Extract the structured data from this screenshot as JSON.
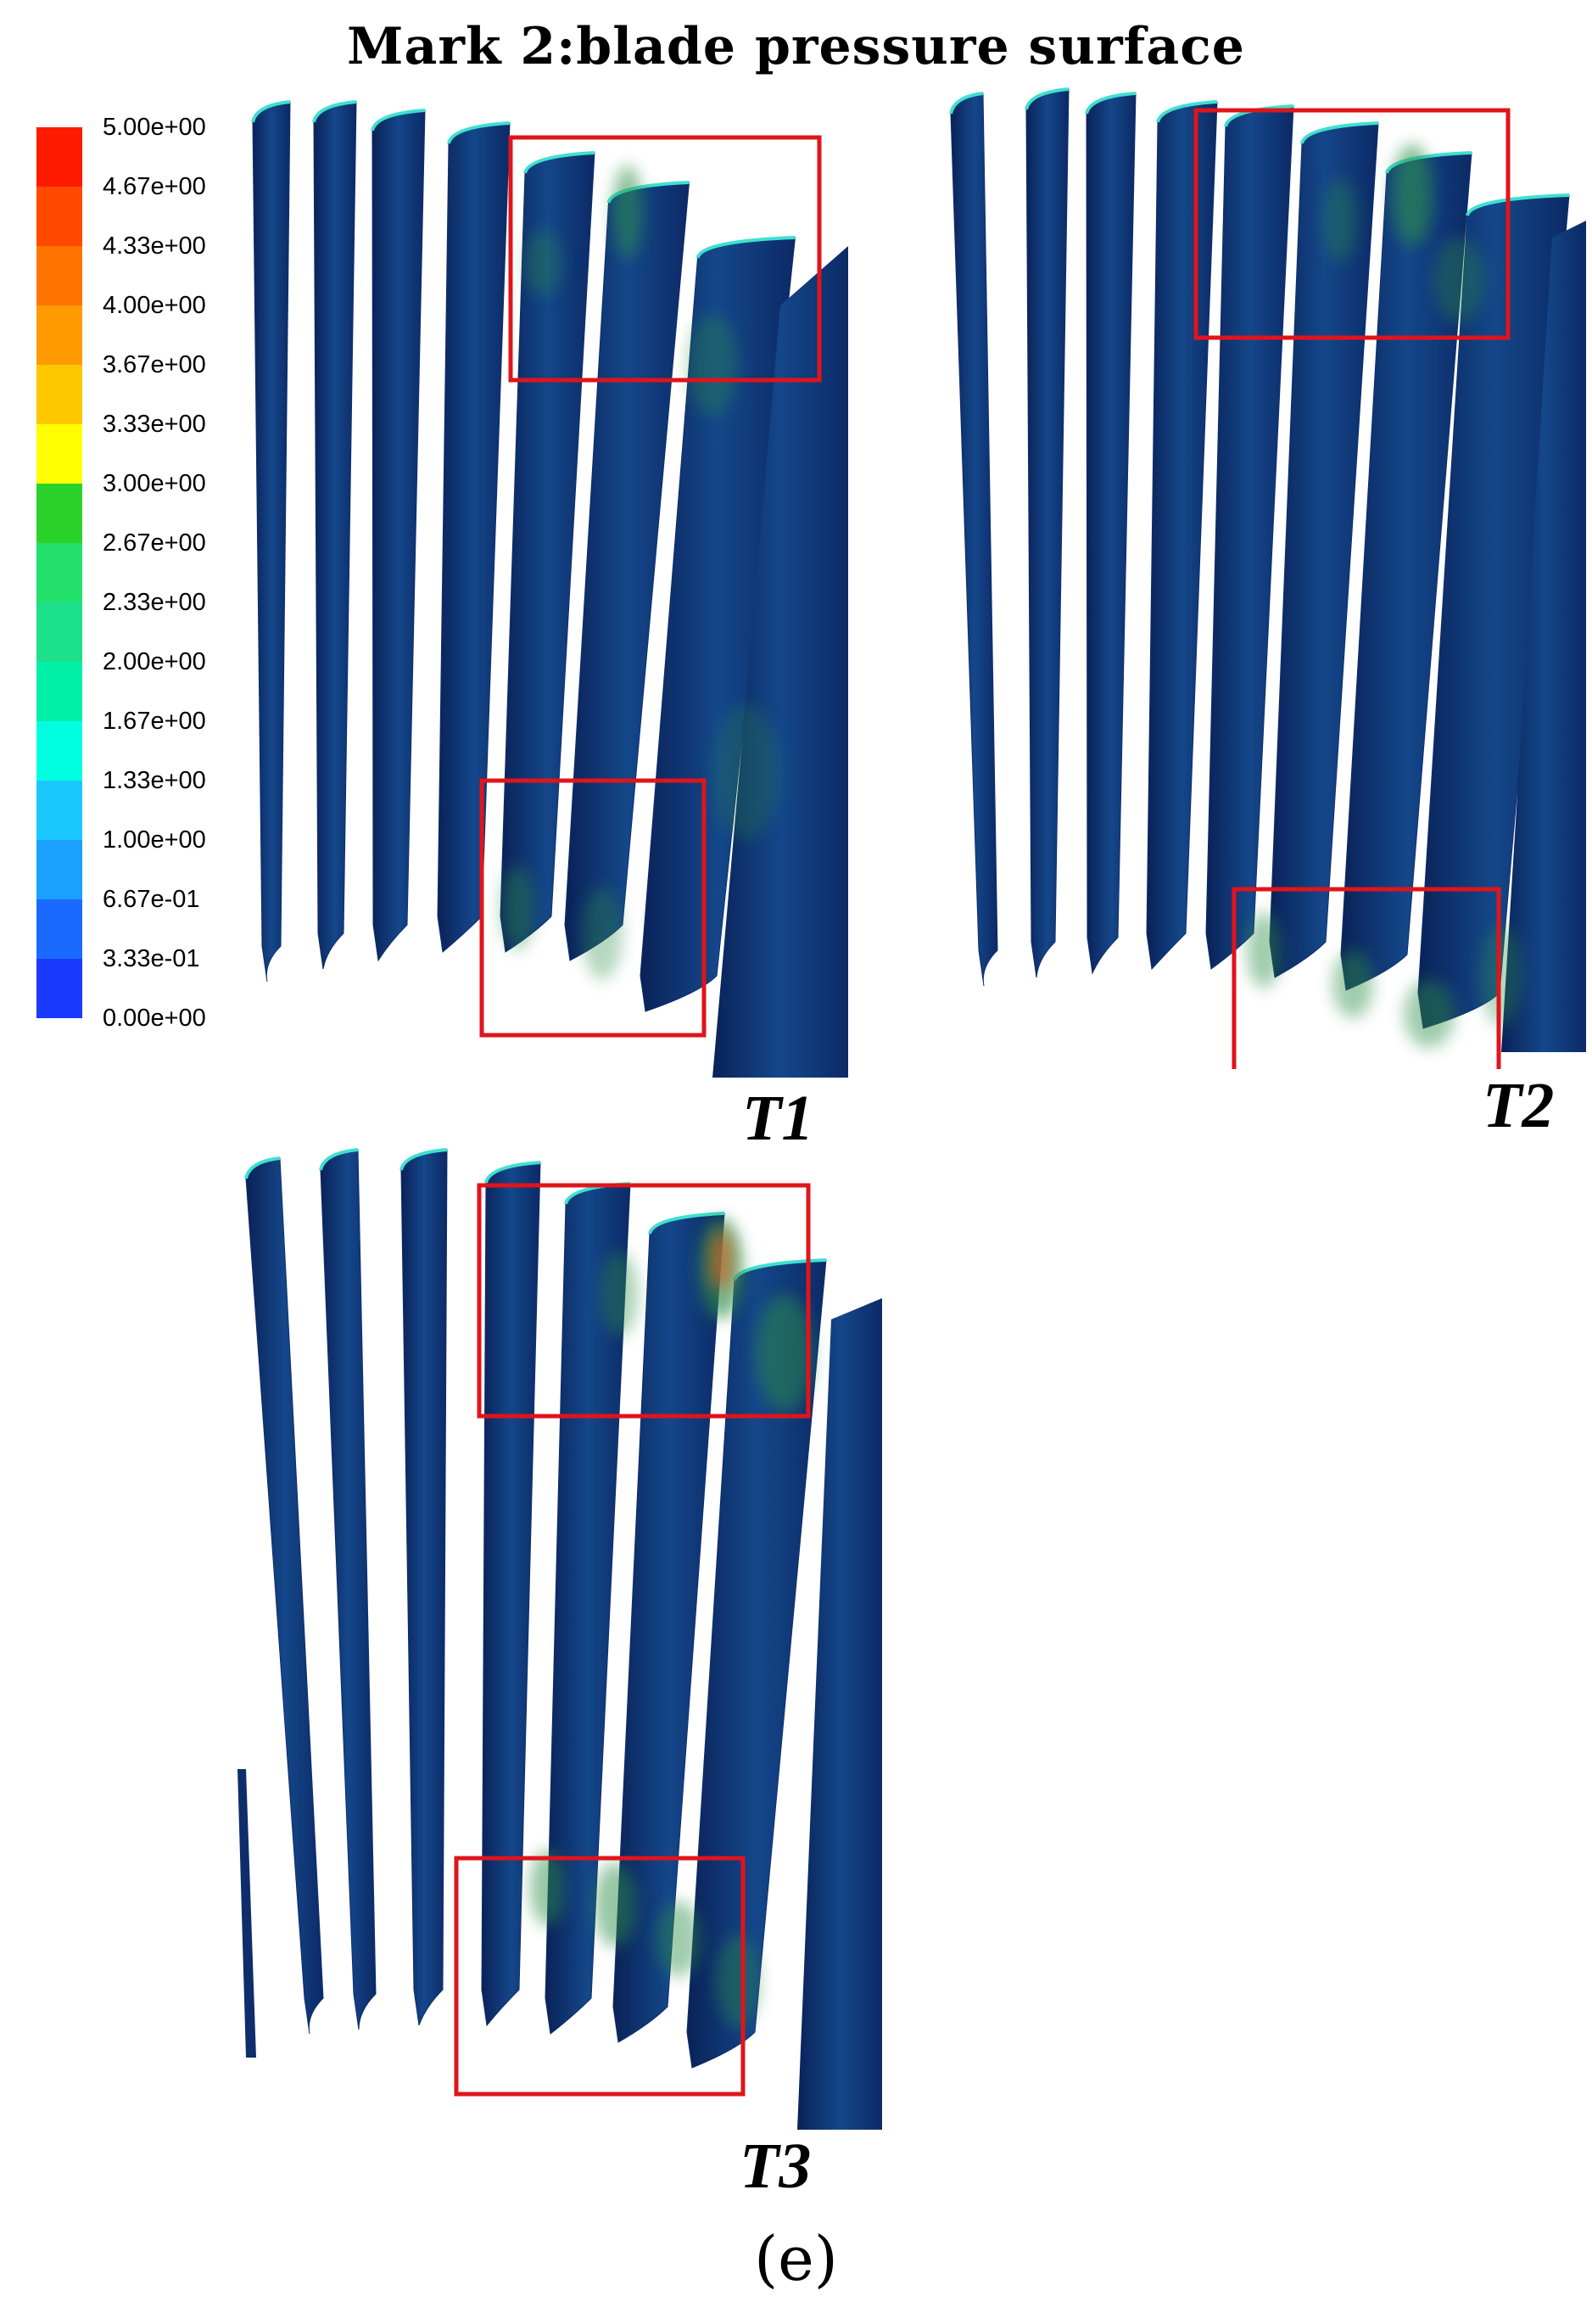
{
  "title": "Mark 2:blade pressure surface",
  "caption": "(e)",
  "legend": {
    "labels": [
      "5.00e+00",
      "4.67e+00",
      "4.33e+00",
      "4.00e+00",
      "3.67e+00",
      "3.33e+00",
      "3.00e+00",
      "2.67e+00",
      "2.33e+00",
      "2.00e+00",
      "1.67e+00",
      "1.33e+00",
      "1.00e+00",
      "6.67e-01",
      "3.33e-01",
      "0.00e+00"
    ],
    "colors": [
      "#ff1a00",
      "#ff4a00",
      "#ff7300",
      "#ff9a00",
      "#ffc700",
      "#ffff00",
      "#2ad22a",
      "#22e06a",
      "#1ce08a",
      "#00f0a8",
      "#00ffe0",
      "#1ac8ff",
      "#1aa0ff",
      "#1a6aff",
      "#1a3aff"
    ]
  },
  "panels": [
    {
      "id": "T1",
      "label": "T1"
    },
    {
      "id": "T2",
      "label": "T2"
    },
    {
      "id": "T3",
      "label": "T3"
    }
  ],
  "colors": {
    "blade_base": "#0f2d6b",
    "blade_mid": "#14478a",
    "hotspot_green": "#2e8f4a",
    "hotspot_red": "#c9682a",
    "highlight_box": "#e0141b",
    "edge_cyan": "#3fe0d0"
  }
}
